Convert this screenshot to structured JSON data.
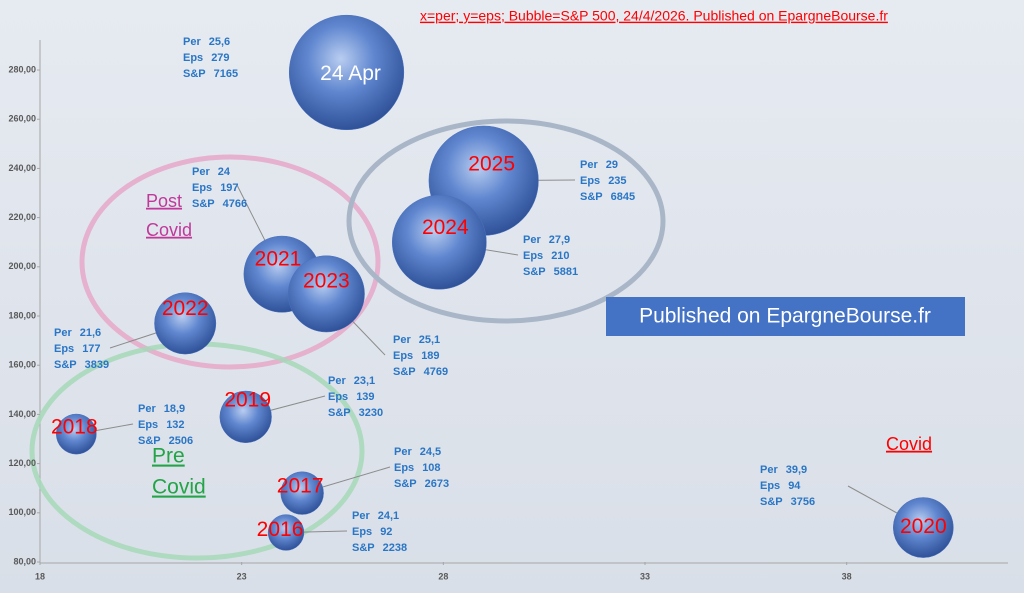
{
  "chart_data": {
    "type": "bubble",
    "title": "x=per; y=eps; Bubble=S&P 500, 24/4/2026.  Published on EpargneBourse.fr",
    "labels": [
      "24 Apr",
      "2025",
      "2024",
      "2021",
      "2023",
      "2022",
      "2019",
      "2018",
      "2017",
      "2016",
      "2020"
    ],
    "x": [
      25.6,
      29,
      27.9,
      24,
      25.1,
      21.6,
      23.1,
      18.9,
      24.5,
      24.1,
      39.9
    ],
    "x_labels": [
      "25,6",
      "29",
      "27,9",
      "24",
      "25,1",
      "21,6",
      "23,1",
      "18,9",
      "24,5",
      "24,1",
      "39,9"
    ],
    "values": [
      279,
      235,
      210,
      197,
      189,
      177,
      139,
      132,
      108,
      92,
      94
    ],
    "sizes": [
      7165,
      6845,
      5881,
      4766,
      4769,
      3839,
      3230,
      2506,
      2673,
      2238,
      3756
    ],
    "label_prefixes": [
      "Per",
      "Eps",
      "S&P"
    ],
    "color": "#4a72c0",
    "xlim": [
      18,
      42
    ],
    "xticks": [
      18,
      23,
      28,
      33,
      38
    ],
    "ylim": [
      80,
      292
    ],
    "yticks": [
      {
        "value": 80,
        "label": "80,00"
      },
      {
        "value": 100,
        "label": "100,00"
      },
      {
        "value": 120,
        "label": "120,00"
      },
      {
        "value": 140,
        "label": "140,00"
      },
      {
        "value": 160,
        "label": "160,00"
      },
      {
        "value": 180,
        "label": "180,00"
      },
      {
        "value": 200,
        "label": "200,00"
      },
      {
        "value": 220,
        "label": "220,00"
      },
      {
        "value": 240,
        "label": "240,00"
      },
      {
        "value": 260,
        "label": "260,00"
      },
      {
        "value": 280,
        "label": "280,00"
      }
    ],
    "annotations": {
      "box": "Published on EpargneBourse.fr",
      "post_covid": [
        "Post",
        "Covid"
      ],
      "pre_covid": [
        "Pre",
        "Covid"
      ],
      "covid": "Covid"
    }
  }
}
